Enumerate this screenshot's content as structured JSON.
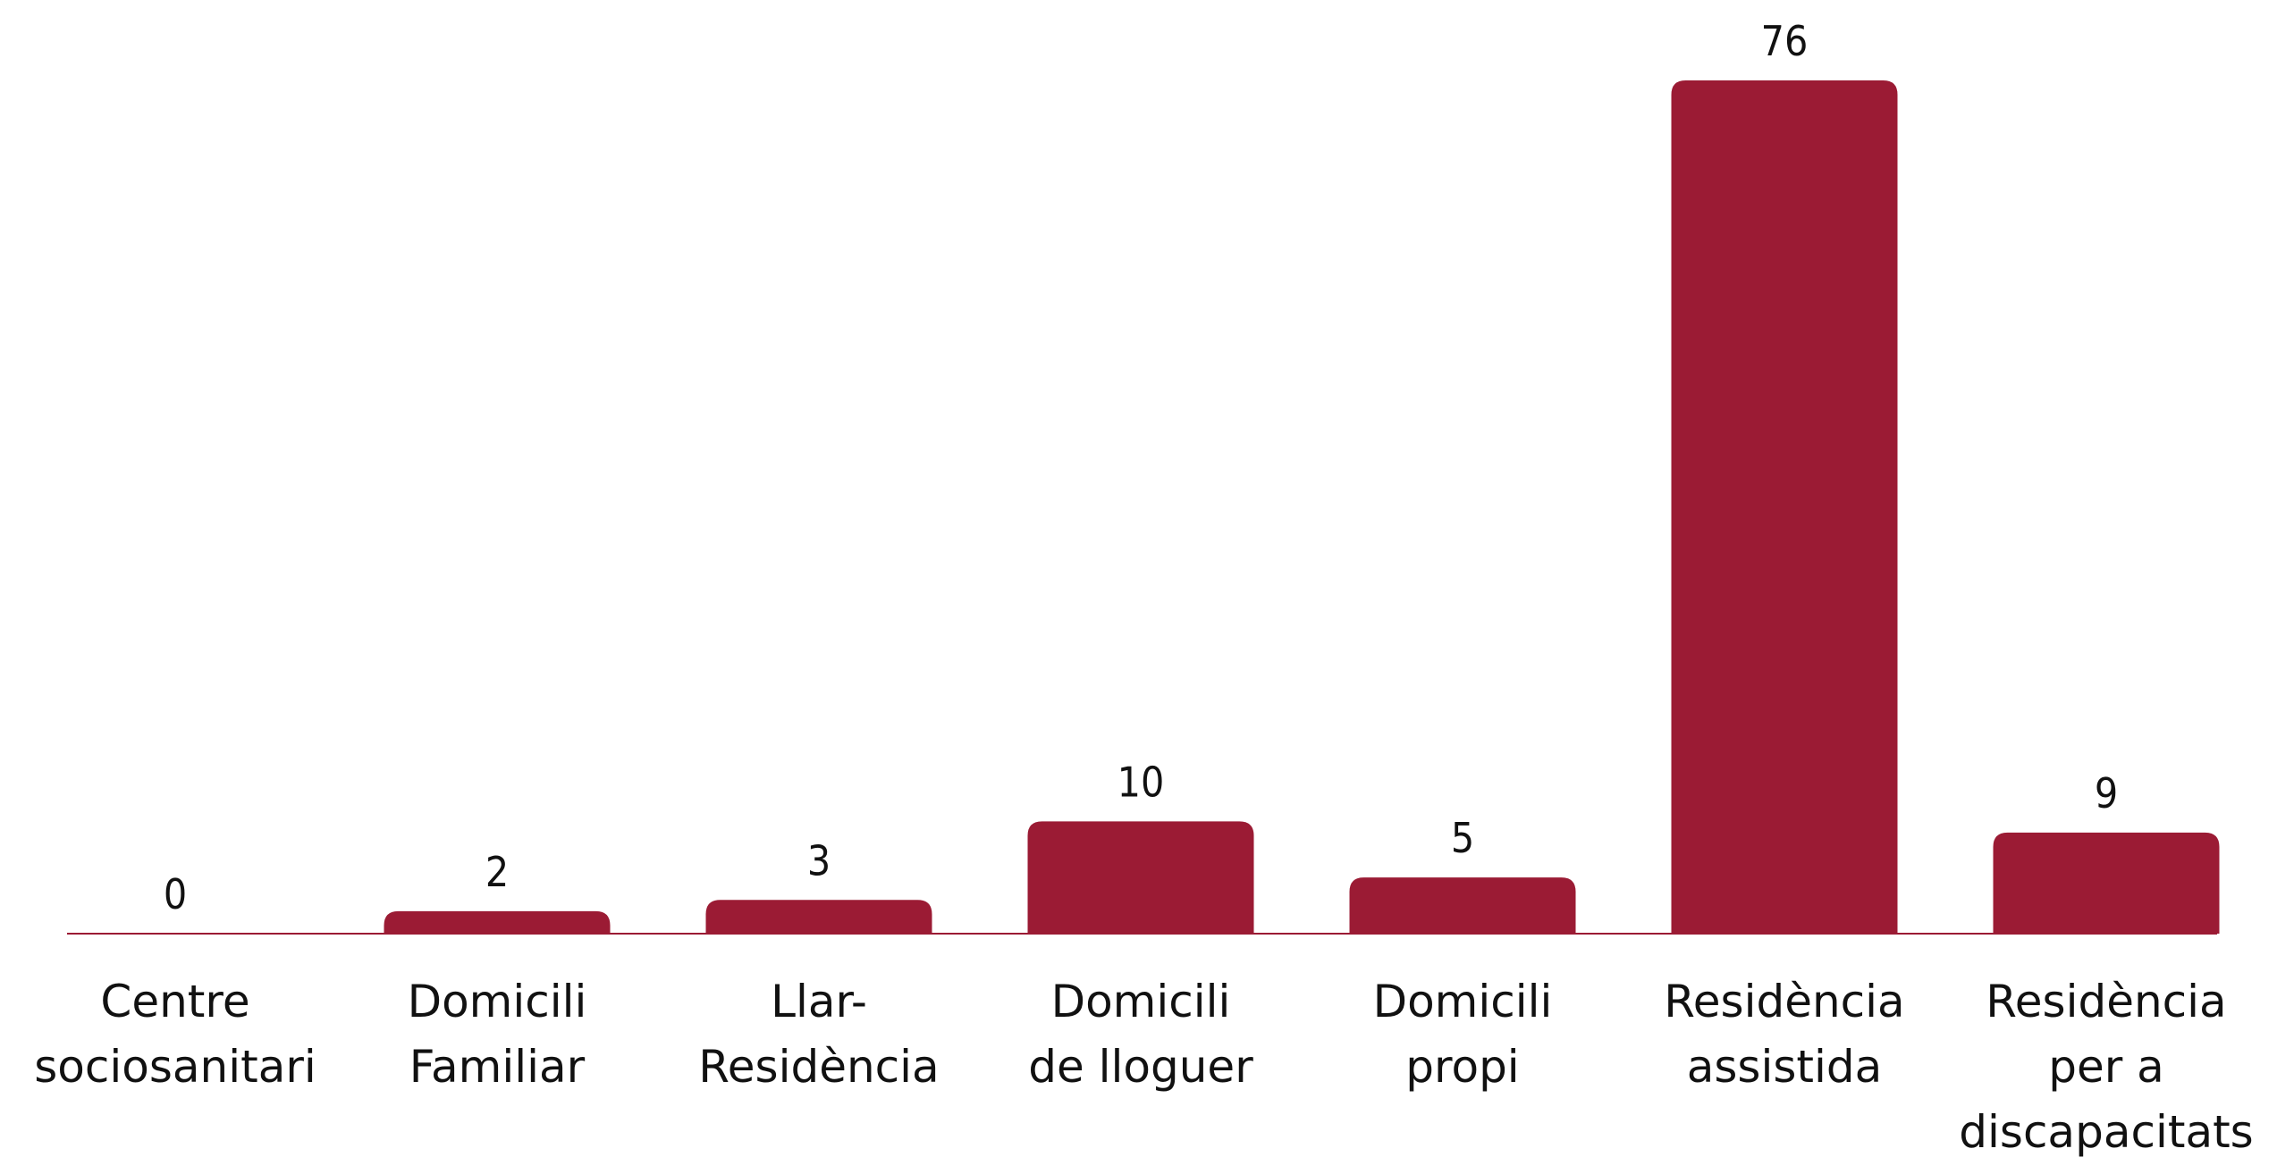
{
  "chart_data": {
    "type": "bar",
    "categories": [
      [
        "Centre",
        "sociosanitari"
      ],
      [
        "Domicili",
        "Familiar"
      ],
      [
        "Llar-",
        "Residència"
      ],
      [
        "Domicili",
        "de lloguer"
      ],
      [
        "Domicili",
        "propi"
      ],
      [
        "Residència",
        "assistida"
      ],
      [
        "Residència",
        "per a",
        "discapacitats"
      ]
    ],
    "values": [
      0,
      2,
      3,
      10,
      5,
      76,
      9
    ],
    "color": "#9b1b34"
  }
}
